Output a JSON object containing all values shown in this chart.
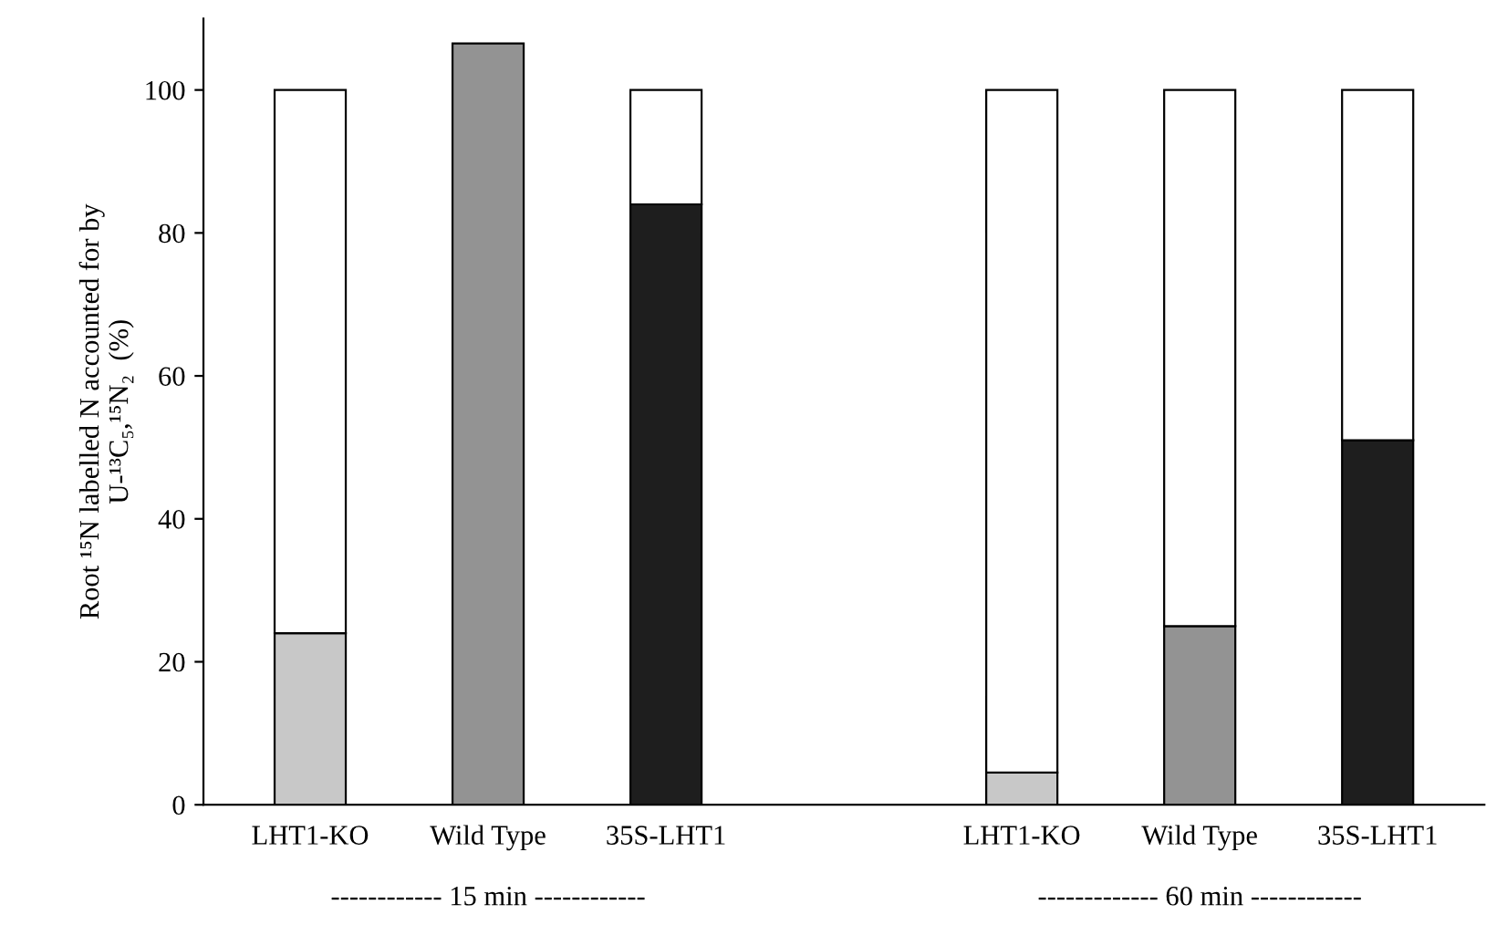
{
  "chart_data": {
    "type": "bar",
    "stacked": true,
    "ylabel": "Root ¹⁵N labelled N accounted for by\nU-¹³C₅,¹⁵N₂  (%)",
    "categories": [
      "LHT1-KO",
      "Wild Type",
      "35S-LHT1",
      null,
      "LHT1-KO",
      "Wild Type",
      "35S-LHT1"
    ],
    "series": [
      {
        "colors": [
          "#c8c8c8",
          "#939393",
          "#1e1e1e",
          null,
          "#c8c8c8",
          "#939393",
          "#1e1e1e"
        ],
        "values": [
          24,
          106.5,
          84,
          null,
          4.5,
          25,
          51
        ]
      },
      {
        "color": "#ffffff",
        "values": [
          76,
          null,
          16,
          null,
          95.5,
          75,
          49
        ]
      }
    ],
    "ylim": [
      0,
      110
    ],
    "yticks": [
      0,
      20,
      40,
      60,
      80,
      100
    ],
    "grid": false,
    "legend": false,
    "annotations": [
      "------------ 15 min ------------",
      "------------- 60 min ------------"
    ]
  }
}
